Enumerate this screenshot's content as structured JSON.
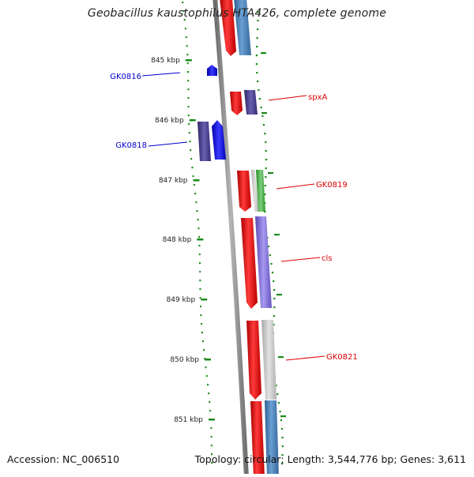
{
  "title": "Geobacillus kaustophilus HTA426, complete genome",
  "footer": {
    "accession": "Accession: NC_006510",
    "summary": "Topology: circular; Length: 3,544,776 bp; Genes: 3,611"
  },
  "ticks": [
    "845 kbp",
    "846 kbp",
    "847 kbp",
    "848 kbp",
    "849 kbp",
    "850 kbp",
    "851 kbp"
  ],
  "gene_labels": [
    {
      "text": "GK0816",
      "strand": "minus",
      "color": "#0000cc"
    },
    {
      "text": "spxA",
      "strand": "plus",
      "color": "#dd0000"
    },
    {
      "text": "GK0818",
      "strand": "minus",
      "color": "#0000cc"
    },
    {
      "text": "GK0819",
      "strand": "plus",
      "color": "#dd0000"
    },
    {
      "text": "cls",
      "strand": "plus",
      "color": "#dd0000"
    },
    {
      "text": "GK0821",
      "strand": "plus",
      "color": "#dd0000"
    }
  ],
  "colors": {
    "backbone": "#8a8a8a",
    "gc_skew_dots": "#1a8a1a",
    "plus_strand": "#ee0000",
    "minus_strand": "#0000ee",
    "cog_blue": "#4a7fb5",
    "cog_purple": "#4a3f8a",
    "cog_lavender": "#7a6ad0",
    "cog_green": "#33aa33",
    "cog_gray": "#c0c0c0"
  }
}
